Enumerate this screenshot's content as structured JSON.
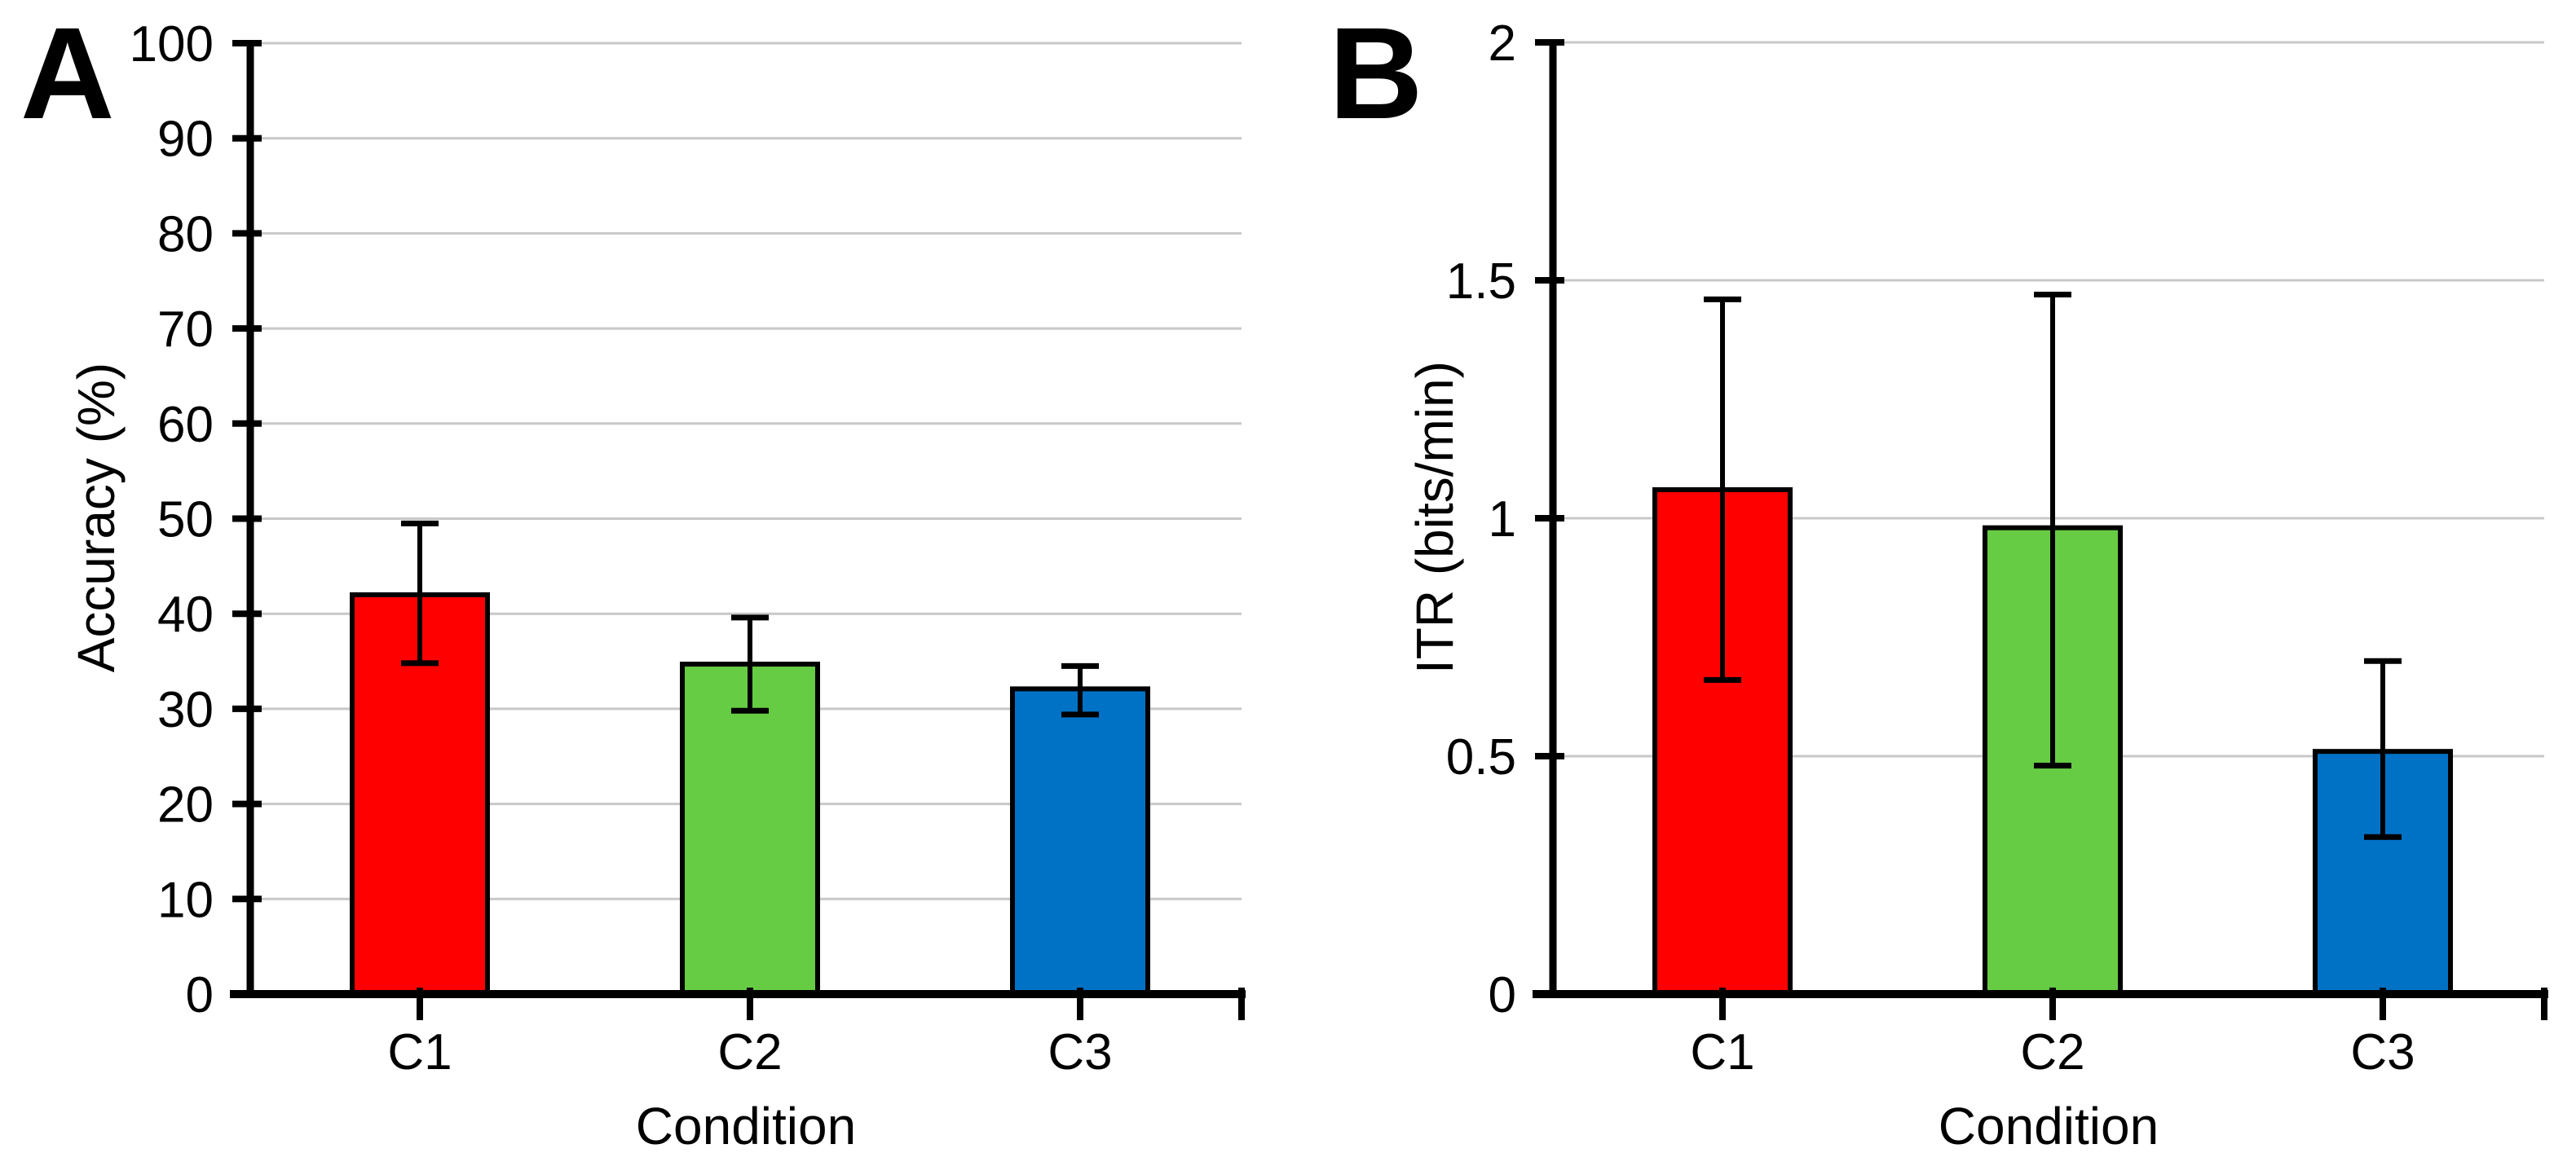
{
  "figure": {
    "background": "#ffffff",
    "axis_color": "#000000",
    "grid_color": "#c8c8c8"
  },
  "chart_data": [
    {
      "type": "bar",
      "panel_label": "A",
      "title": "",
      "xlabel": "Condition",
      "ylabel": "Accuracy (%)",
      "categories": [
        "C1",
        "C2",
        "C3"
      ],
      "values": [
        42.0,
        34.7,
        32.1
      ],
      "error_low": [
        34.8,
        29.8,
        29.4
      ],
      "error_high": [
        49.5,
        39.6,
        34.5
      ],
      "bar_colors": [
        "#fe0000",
        "#66cc44",
        "#0072c6"
      ],
      "bar_edge_color": "#000000",
      "error_bar_color": "#000000",
      "ylim": [
        0,
        100
      ],
      "yticks": [
        0,
        10,
        20,
        30,
        40,
        50,
        60,
        70,
        80,
        90,
        100
      ],
      "ytick_labels": [
        "0",
        "10",
        "20",
        "30",
        "40",
        "50",
        "60",
        "70",
        "80",
        "90",
        "100"
      ],
      "grid": true,
      "grid_color": "#c8c8c8",
      "legend": "none"
    },
    {
      "type": "bar",
      "panel_label": "B",
      "title": "",
      "xlabel": "Condition",
      "ylabel": "ITR (bits/min)",
      "categories": [
        "C1",
        "C2",
        "C3"
      ],
      "values": [
        1.06,
        0.98,
        0.51
      ],
      "error_low": [
        0.66,
        0.48,
        0.33
      ],
      "error_high": [
        1.46,
        1.47,
        0.7
      ],
      "bar_colors": [
        "#fe0000",
        "#66cc44",
        "#0072c6"
      ],
      "bar_edge_color": "#000000",
      "error_bar_color": "#000000",
      "ylim": [
        0,
        2
      ],
      "yticks": [
        0,
        0.5,
        1,
        1.5,
        2
      ],
      "ytick_labels": [
        "0",
        "0.5",
        "1",
        "1.5",
        "2"
      ],
      "grid": true,
      "grid_color": "#c8c8c8",
      "legend": "none"
    }
  ]
}
